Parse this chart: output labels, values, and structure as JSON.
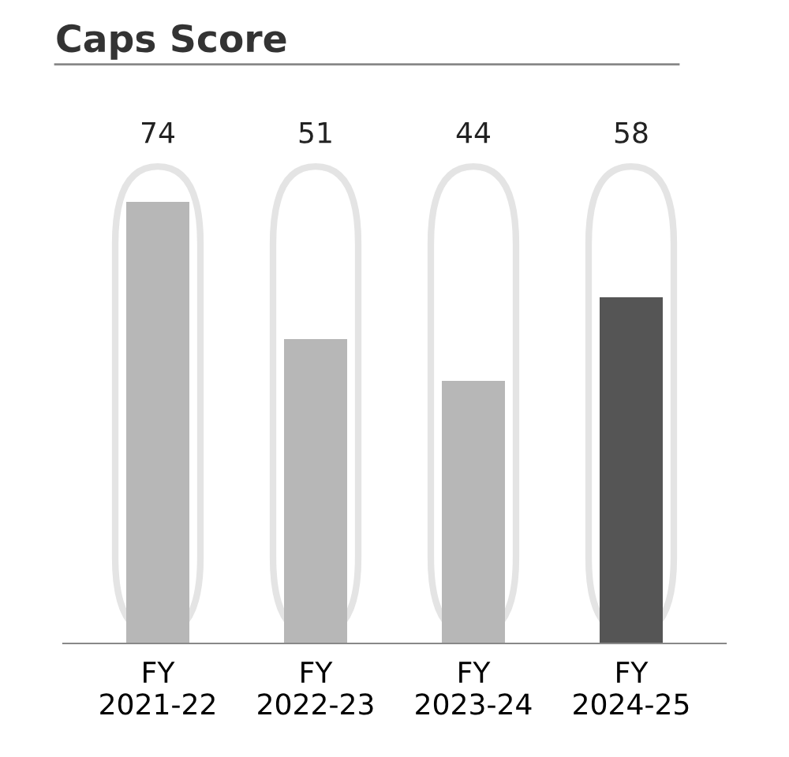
{
  "chart_data": {
    "type": "bar",
    "title": "Caps Score",
    "categories": [
      "FY\n2021-22",
      "FY\n2022-23",
      "FY\n2023-24",
      "FY\n2024-25"
    ],
    "values": [
      74,
      51,
      44,
      58
    ],
    "colors": [
      "#b7b7b7",
      "#b7b7b7",
      "#b7b7b7",
      "#555555"
    ],
    "data_labels": true,
    "grid": false
  }
}
